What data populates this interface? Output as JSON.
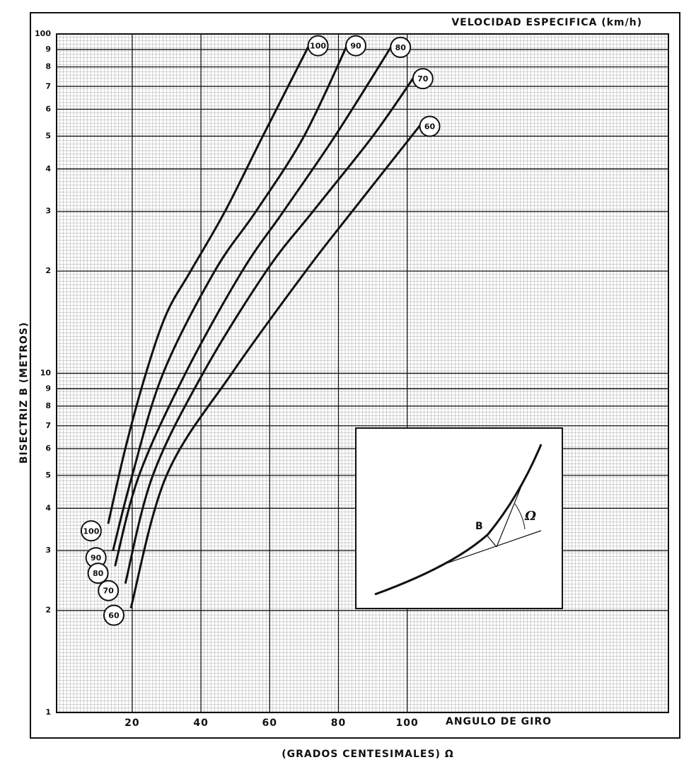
{
  "chart_data": {
    "type": "line",
    "title": "VELOCIDAD ESPECIFICA (km/h)",
    "x_label": "ANGULO DE GIRO",
    "x_sublabel": "(GRADOS CENTESIMALES) Ω",
    "y_label": "BISECTRIZ B (METROS)",
    "log_y": true,
    "grid": true,
    "xlim": [
      -2,
      176
    ],
    "ylim": [
      1,
      100
    ],
    "xticks": [
      20,
      40,
      60,
      80,
      100
    ],
    "yticks": [
      1,
      2,
      3,
      4,
      5,
      6,
      7,
      8,
      9,
      10,
      {
        "value": 20,
        "label": "2"
      },
      {
        "value": 30,
        "label": "3"
      },
      {
        "value": 40,
        "label": "4"
      },
      {
        "value": 50,
        "label": "5"
      },
      {
        "value": 60,
        "label": "6"
      },
      {
        "value": 70,
        "label": "7"
      },
      {
        "value": 80,
        "label": "8"
      },
      {
        "value": 90,
        "label": "9"
      },
      100
    ],
    "series": [
      {
        "name": "100",
        "color": "#111",
        "x": [
          13,
          18,
          24,
          30,
          37,
          47,
          58,
          72
        ],
        "values": [
          3.6,
          6,
          10,
          15,
          20,
          30,
          50,
          95
        ]
      },
      {
        "name": "90",
        "color": "#111",
        "x": [
          14.4,
          20,
          29,
          44,
          56,
          70,
          83
        ],
        "values": [
          3.0,
          5,
          10,
          20,
          30,
          50,
          95
        ]
      },
      {
        "name": "80",
        "color": "#111",
        "x": [
          15,
          22,
          35.5,
          52,
          64,
          79,
          96
        ],
        "values": [
          2.7,
          5,
          10,
          20,
          30,
          50,
          94
        ]
      },
      {
        "name": "70",
        "color": "#111",
        "x": [
          18,
          26,
          40.6,
          59,
          72.6,
          90,
          102.5
        ],
        "values": [
          2.4,
          5,
          10,
          20,
          30,
          50,
          76
        ]
      },
      {
        "name": "60",
        "color": "#111",
        "x": [
          19.6,
          30,
          49,
          70.5,
          84,
          104.5
        ],
        "values": [
          2.03,
          5,
          10,
          20,
          30,
          55
        ]
      }
    ],
    "inset_labels": [
      "B",
      "Ω"
    ]
  }
}
